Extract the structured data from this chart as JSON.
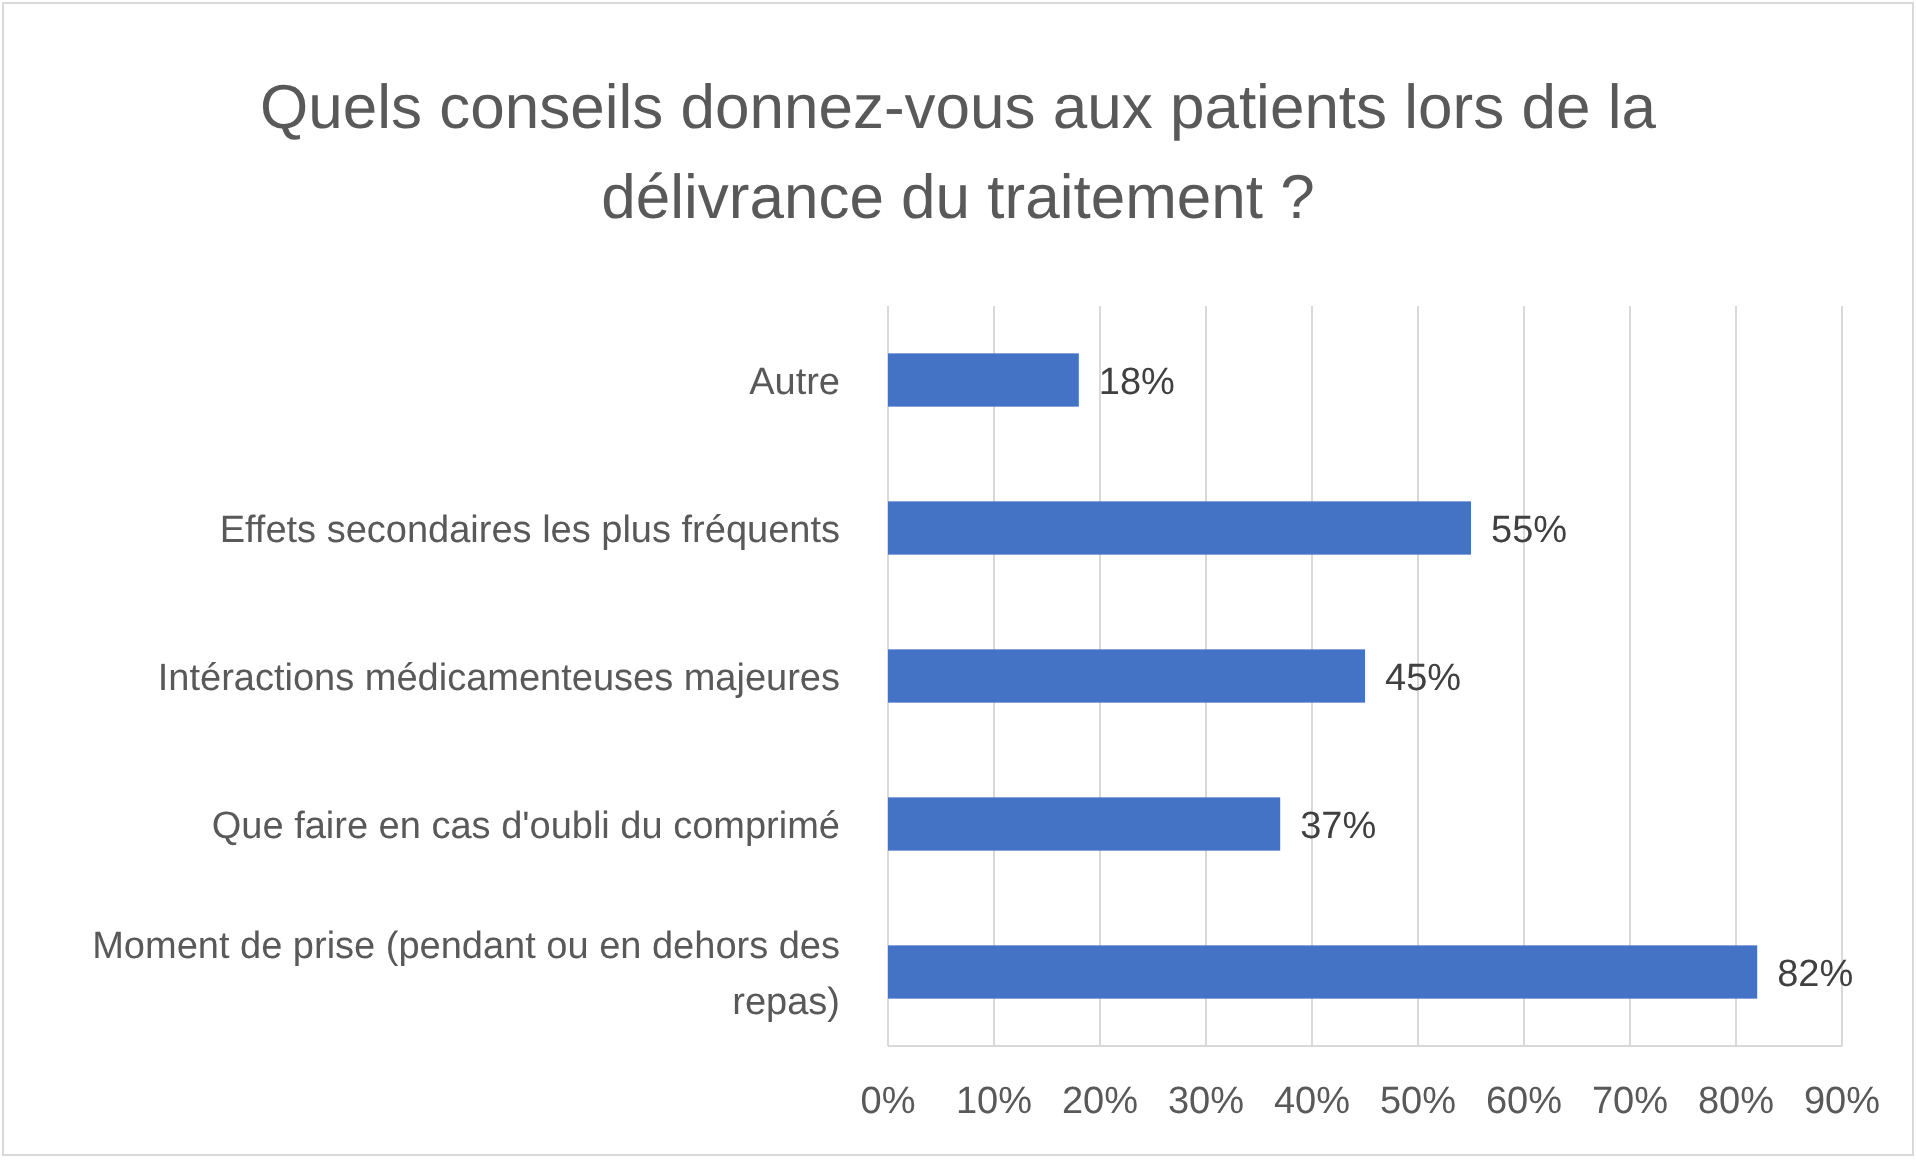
{
  "chart_data": {
    "type": "bar",
    "orientation": "horizontal",
    "title": "Quels conseils donnez-vous aux patients lors de la délivrance du traitement ?",
    "categories": [
      "Autre",
      "Effets secondaires les plus fréquents",
      "Intéractions médicamenteuses majeures",
      "Que faire en cas d'oubli du comprimé",
      "Moment de prise (pendant ou en dehors des repas)"
    ],
    "values": [
      18,
      55,
      45,
      37,
      82
    ],
    "value_labels": [
      "18%",
      "55%",
      "45%",
      "37%",
      "82%"
    ],
    "color": "#4472c4",
    "xlim": [
      0,
      90
    ],
    "xticks": [
      {
        "value": 0,
        "label": "0%"
      },
      {
        "value": 10,
        "label": "10%"
      },
      {
        "value": 20,
        "label": "20%"
      },
      {
        "value": 30,
        "label": "30%"
      },
      {
        "value": 40,
        "label": "40%"
      },
      {
        "value": 50,
        "label": "50%"
      },
      {
        "value": 60,
        "label": "60%"
      },
      {
        "value": 70,
        "label": "70%"
      },
      {
        "value": 80,
        "label": "80%"
      },
      {
        "value": 90,
        "label": "90%"
      }
    ],
    "grid": "x"
  }
}
